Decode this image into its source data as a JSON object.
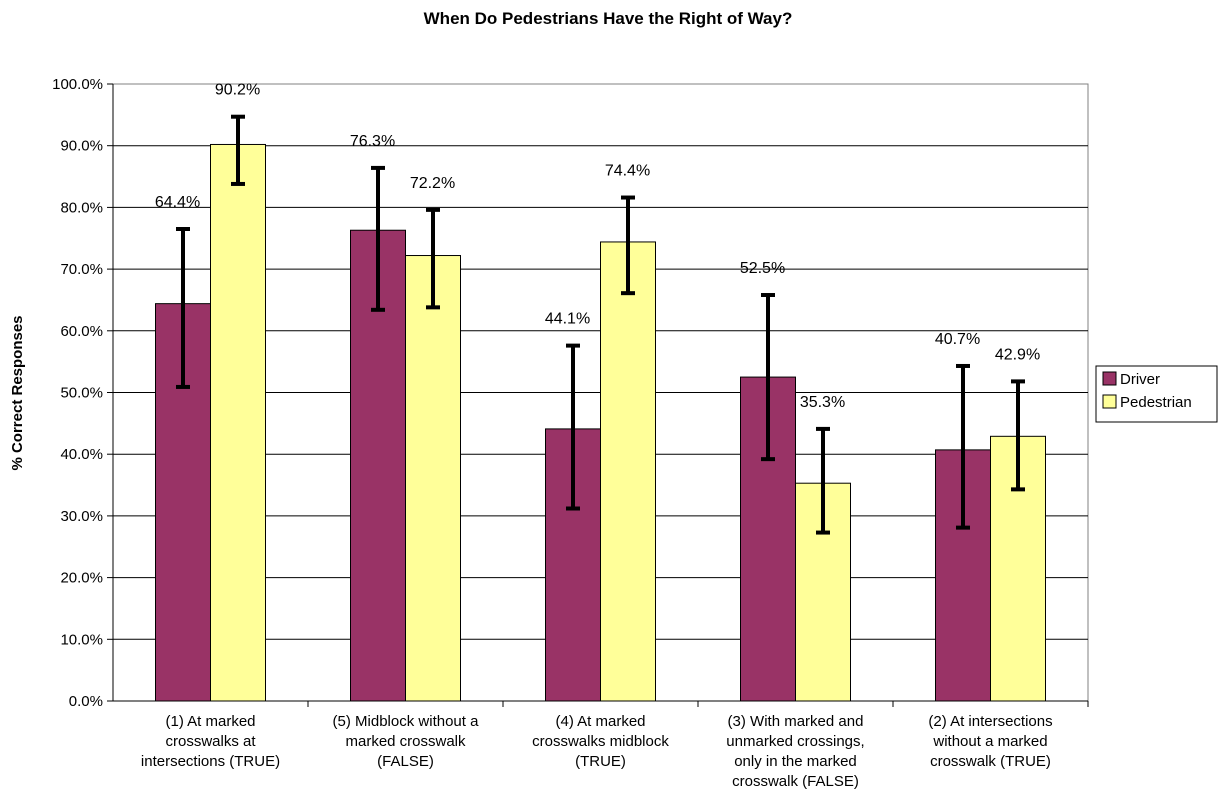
{
  "chart_data": {
    "type": "bar",
    "title": "When Do Pedestrians Have the Right of Way?",
    "xlabel": "",
    "ylabel": "% Correct Responses",
    "ylim": [
      0,
      100
    ],
    "y_ticks": [
      "0.0%",
      "10.0%",
      "20.0%",
      "30.0%",
      "40.0%",
      "50.0%",
      "60.0%",
      "70.0%",
      "80.0%",
      "90.0%",
      "100.0%"
    ],
    "grid": true,
    "legend_position": "right",
    "categories": [
      [
        "(1) At marked",
        "crosswalks at",
        "intersections (TRUE)"
      ],
      [
        "(5) Midblock without a",
        "marked crosswalk",
        "(FALSE)"
      ],
      [
        "(4) At marked",
        "crosswalks midblock",
        "(TRUE)"
      ],
      [
        "(3) With marked and",
        "unmarked crossings,",
        "only in the marked",
        "crosswalk (FALSE)"
      ],
      [
        "(2) At intersections",
        "without a marked",
        "crosswalk (TRUE)"
      ]
    ],
    "series": [
      {
        "name": "Driver",
        "color": "#993366",
        "values": [
          64.4,
          76.3,
          44.1,
          52.5,
          40.7
        ],
        "labels": [
          "64.4%",
          "76.3%",
          "44.1%",
          "52.5%",
          "40.7%"
        ],
        "error_low": [
          50.9,
          63.4,
          31.2,
          39.2,
          28.1
        ],
        "error_high": [
          76.5,
          86.4,
          57.6,
          65.8,
          54.3
        ]
      },
      {
        "name": "Pedestrian",
        "color": "#FFFF99",
        "values": [
          90.2,
          72.2,
          74.4,
          35.3,
          42.9
        ],
        "labels": [
          "90.2%",
          "72.2%",
          "74.4%",
          "35.3%",
          "42.9%"
        ],
        "error_low": [
          83.8,
          63.8,
          66.1,
          27.3,
          34.3
        ],
        "error_high": [
          94.7,
          79.6,
          81.6,
          44.1,
          51.8
        ]
      }
    ]
  }
}
